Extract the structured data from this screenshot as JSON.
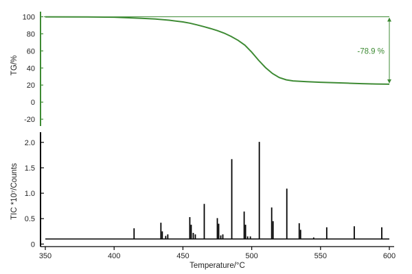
{
  "chart_data": [
    {
      "type": "line",
      "ylabel": "TG/%",
      "xlim": [
        350,
        600
      ],
      "ylim": [
        -28,
        106
      ],
      "yticks": [
        100,
        80,
        60,
        40,
        20,
        0,
        -20
      ],
      "grid": false,
      "color": "#3d8a33",
      "series": [
        {
          "x": [
            350,
            380,
            400,
            420,
            430,
            440,
            450,
            455,
            460,
            465,
            470,
            475,
            480,
            485,
            490,
            495,
            500,
            505,
            510,
            515,
            520,
            525,
            530,
            540,
            550,
            560,
            570,
            580,
            590,
            600
          ],
          "values": [
            99.9,
            99.8,
            99.5,
            98.2,
            97.3,
            96.0,
            94.0,
            92.5,
            90.6,
            88.5,
            86.3,
            83.8,
            80.8,
            77.0,
            72.5,
            66.8,
            58.5,
            49.0,
            40.5,
            33.6,
            28.8,
            26.2,
            24.9,
            23.9,
            23.3,
            22.7,
            22.2,
            21.7,
            21.3,
            21.0
          ]
        }
      ],
      "reference_lines": [
        100,
        21
      ],
      "annotation": {
        "text": "-78.9 %",
        "from": 100,
        "to": 21
      }
    },
    {
      "type": "line",
      "xlabel": "Temperature/°C",
      "ylabel": "TIC *10⁷/Counts",
      "xlim": [
        350,
        600
      ],
      "xticks": [
        350,
        400,
        450,
        500,
        550,
        600
      ],
      "ylim": [
        -0.05,
        2.2
      ],
      "yticks": [
        0,
        0.5,
        1.0,
        1.5,
        2.0
      ],
      "ytick_labels": [
        "0",
        "0.5",
        "1.0",
        "1.5",
        "2.0"
      ],
      "grid": false,
      "color": "#000000",
      "baseline": 0.1,
      "peaks": [
        {
          "x": 414.5,
          "y": 0.31
        },
        {
          "x": 434,
          "y": 0.42
        },
        {
          "x": 435,
          "y": 0.25
        },
        {
          "x": 437.5,
          "y": 0.16
        },
        {
          "x": 439,
          "y": 0.19
        },
        {
          "x": 455,
          "y": 0.53
        },
        {
          "x": 456,
          "y": 0.38
        },
        {
          "x": 457.5,
          "y": 0.22
        },
        {
          "x": 459,
          "y": 0.19
        },
        {
          "x": 465.5,
          "y": 0.79
        },
        {
          "x": 475,
          "y": 0.51
        },
        {
          "x": 476,
          "y": 0.4
        },
        {
          "x": 477.5,
          "y": 0.17
        },
        {
          "x": 479,
          "y": 0.19
        },
        {
          "x": 485.5,
          "y": 1.67
        },
        {
          "x": 494.5,
          "y": 0.64
        },
        {
          "x": 495.5,
          "y": 0.38
        },
        {
          "x": 497,
          "y": 0.15
        },
        {
          "x": 499,
          "y": 0.15
        },
        {
          "x": 505.5,
          "y": 2.01
        },
        {
          "x": 514.5,
          "y": 0.72
        },
        {
          "x": 515.5,
          "y": 0.45
        },
        {
          "x": 525.5,
          "y": 1.09
        },
        {
          "x": 534.5,
          "y": 0.41
        },
        {
          "x": 535.5,
          "y": 0.28
        },
        {
          "x": 545,
          "y": 0.13
        },
        {
          "x": 554.5,
          "y": 0.33
        },
        {
          "x": 574.5,
          "y": 0.35
        },
        {
          "x": 594.5,
          "y": 0.33
        }
      ]
    }
  ]
}
